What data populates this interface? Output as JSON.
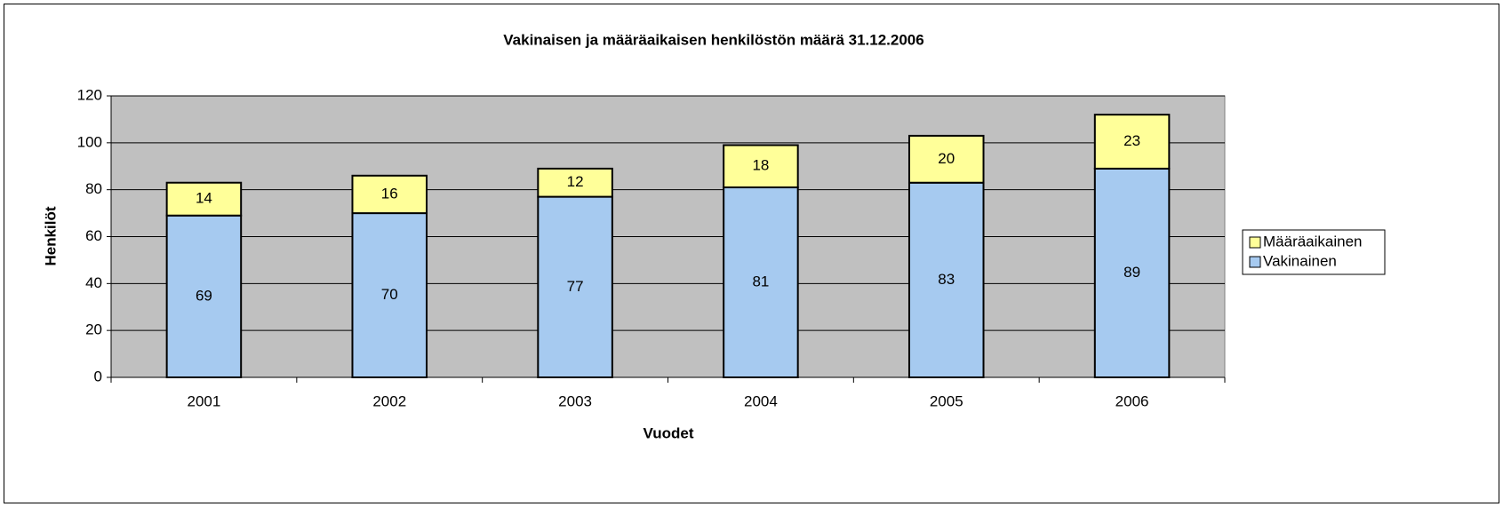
{
  "chart_data": {
    "type": "stacked_bar",
    "title": "Vakinaisen ja määräaikaisen henkilöstön määrä 31.12.2006",
    "x_label": "Vuodet",
    "y_label": "Henkilöt",
    "categories": [
      "2001",
      "2002",
      "2003",
      "2004",
      "2005",
      "2006"
    ],
    "series": [
      {
        "name": "Vakinainen",
        "color": "#a6caf0",
        "values": [
          69,
          70,
          77,
          81,
          83,
          89
        ]
      },
      {
        "name": "Määräaikainen",
        "color": "#ffff99",
        "values": [
          14,
          16,
          12,
          18,
          20,
          23
        ]
      }
    ],
    "ylim": [
      0,
      120
    ],
    "yticks": [
      0,
      20,
      40,
      60,
      80,
      100,
      120
    ],
    "grid": true,
    "legend": "right",
    "plot_background": "#c0c0c0"
  }
}
